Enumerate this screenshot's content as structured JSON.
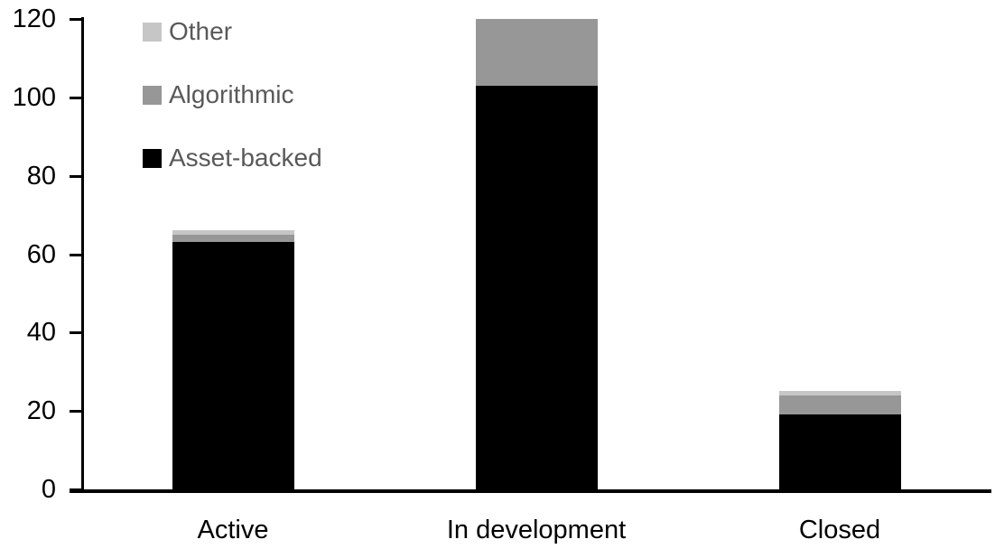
{
  "chart_data": {
    "type": "bar",
    "stacked": true,
    "title": "",
    "xlabel": "",
    "ylabel": "",
    "categories": [
      "Active",
      "In development",
      "Closed"
    ],
    "series": [
      {
        "name": "Asset-backed",
        "color": "#000000",
        "values": [
          63,
          103,
          19
        ]
      },
      {
        "name": "Algorithmic",
        "color": "#979797",
        "values": [
          2,
          17,
          5
        ]
      },
      {
        "name": "Other",
        "color": "#c6c6c6",
        "values": [
          1,
          0,
          1
        ]
      }
    ],
    "totals": [
      66,
      120,
      25
    ],
    "ylim": [
      0,
      120
    ],
    "yticks": [
      0,
      20,
      40,
      60,
      80,
      100,
      120
    ],
    "grid": false,
    "legend": {
      "position": "top-left",
      "order_top_to_bottom": [
        "Other",
        "Algorithmic",
        "Asset-backed"
      ],
      "text_color": "#595959"
    },
    "axis_color": "#000000",
    "background": "#ffffff"
  }
}
